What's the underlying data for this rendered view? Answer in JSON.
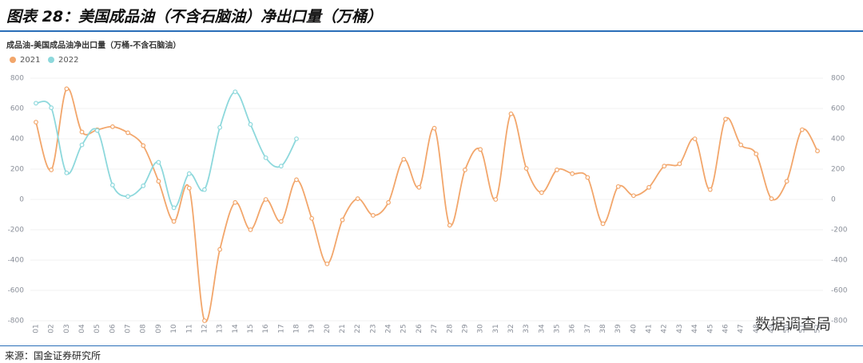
{
  "header": {
    "title": "图表 28：美国成品油（不含石脑油）净出口量（万桶）"
  },
  "chart_data": {
    "type": "line",
    "title": "成品油-美国成品油净出口量（万桶-不含石脑油）",
    "categories": [
      "01",
      "02",
      "03",
      "04",
      "05",
      "06",
      "07",
      "08",
      "09",
      "10",
      "11",
      "12",
      "13",
      "14",
      "15",
      "16",
      "17",
      "18",
      "19",
      "20",
      "21",
      "22",
      "23",
      "24",
      "25",
      "26",
      "27",
      "28",
      "29",
      "30",
      "31",
      "32",
      "33",
      "34",
      "35",
      "36",
      "37",
      "38",
      "39",
      "40",
      "41",
      "42",
      "43",
      "44",
      "45",
      "46",
      "47",
      "48",
      "49",
      "50",
      "51",
      "52"
    ],
    "series": [
      {
        "name": "2021",
        "color": "#f2a66b",
        "values": [
          510,
          195,
          730,
          445,
          460,
          480,
          440,
          355,
          120,
          -145,
          75,
          -800,
          -330,
          -20,
          -200,
          0,
          -145,
          130,
          -125,
          -425,
          -135,
          5,
          -105,
          -20,
          265,
          80,
          470,
          -170,
          195,
          330,
          0,
          565,
          205,
          45,
          195,
          170,
          145,
          -160,
          85,
          25,
          80,
          220,
          235,
          400,
          65,
          530,
          360,
          300,
          5,
          120,
          460,
          320
        ]
      },
      {
        "name": "2022",
        "color": "#8dd8dc",
        "values": [
          635,
          605,
          175,
          360,
          455,
          95,
          20,
          90,
          245,
          -55,
          170,
          65,
          475,
          710,
          495,
          275,
          220,
          400,
          null,
          null,
          null,
          null,
          null,
          null,
          null,
          null,
          null,
          null,
          null,
          null,
          null,
          null,
          null,
          null,
          null,
          null,
          null,
          null,
          null,
          null,
          null,
          null,
          null,
          null,
          null,
          null,
          null,
          null,
          null,
          null,
          null,
          null
        ]
      }
    ],
    "ylim": [
      -800,
      800
    ],
    "yticks": [
      -800,
      -600,
      -400,
      -200,
      0,
      200,
      400,
      600,
      800
    ],
    "grid": true,
    "watermark": "数据调查局"
  },
  "footer": {
    "source": "来源：国金证券研究所"
  }
}
